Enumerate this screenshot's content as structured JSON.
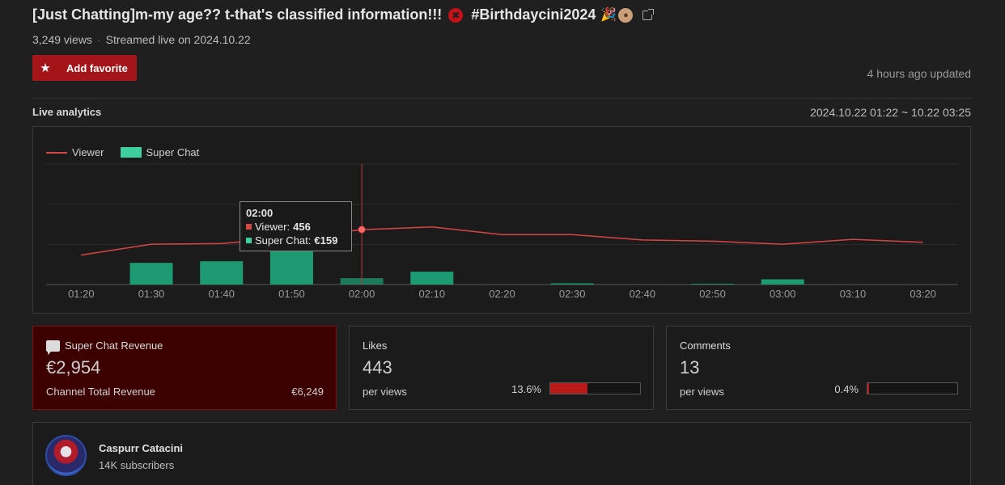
{
  "video": {
    "title_text": "[Just Chatting]m-my age?? t-that's classified information!!!",
    "hashtag": "#Birthdaycini2024",
    "title_icons": [
      "angry-emoji-icon",
      "party-popper-icon",
      "cake-icon",
      "external-link-icon"
    ],
    "views": "3,249 views",
    "streamed": "Streamed live on 2024.10.22",
    "favorite_label": "Add favorite",
    "updated": "4 hours ago updated"
  },
  "analytics": {
    "title": "Live analytics",
    "range": "2024.10.22 01:22 ~ 10.22 03:25",
    "legend": {
      "viewer": "Viewer",
      "superchat": "Super Chat"
    },
    "tooltip": {
      "time": "02:00",
      "viewer_label": "Viewer:",
      "viewer_value": "456",
      "superchat_label": "Super Chat:",
      "superchat_value": "€159"
    },
    "colors": {
      "viewer": "#d64545",
      "superchat": "#1e9a72",
      "accent": "#a31518"
    }
  },
  "chart_data": {
    "type": "line",
    "categories": [
      "01:20",
      "01:30",
      "01:40",
      "01:50",
      "02:00",
      "02:10",
      "02:20",
      "02:30",
      "02:40",
      "02:50",
      "03:00",
      "03:10",
      "03:20"
    ],
    "series": [
      {
        "name": "Viewer",
        "type": "line",
        "values": [
          245,
          335,
          340,
          390,
          456,
          478,
          415,
          415,
          370,
          360,
          335,
          375,
          350
        ]
      },
      {
        "name": "Super Chat",
        "type": "bar",
        "values": [
          0,
          540,
          580,
          1560,
          159,
          320,
          0,
          30,
          0,
          18,
          130,
          0,
          0
        ]
      }
    ],
    "grid": true,
    "legend": "top-left",
    "highlight": "02:00"
  },
  "cards": {
    "revenue": {
      "label": "Super Chat Revenue",
      "value": "€2,954",
      "total_label": "Channel Total Revenue",
      "total_value": "€6,249"
    },
    "likes": {
      "label": "Likes",
      "value": "443",
      "per_label": "per views",
      "pct": "13.6%",
      "ratio": 0.417
    },
    "comments": {
      "label": "Comments",
      "value": "13",
      "per_label": "per views",
      "pct": "0.4%",
      "ratio": 0.02
    }
  },
  "channel": {
    "name": "Caspurr Catacini",
    "subscribers": "14K subscribers"
  }
}
